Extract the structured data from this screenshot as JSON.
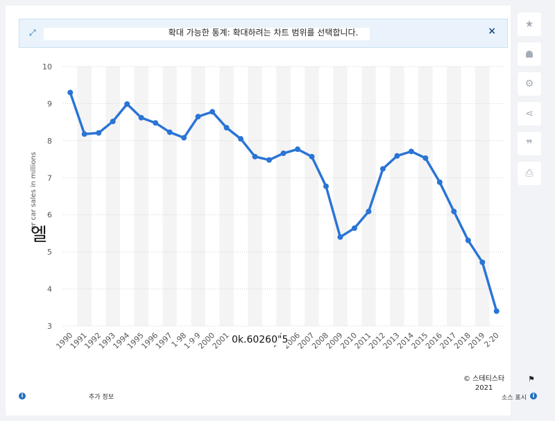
{
  "banner": {
    "message": "확대 가능한 통계: 확대하려는 차트 범위를 선택합니다.",
    "close_symbol": "×",
    "expand_icon": "expand-icon"
  },
  "sidebar": {
    "buttons": [
      {
        "icon": "star-icon",
        "glyph": "★"
      },
      {
        "icon": "bell-icon",
        "glyph": "🔔"
      },
      {
        "icon": "gear-icon",
        "glyph": "⚙"
      },
      {
        "icon": "share-icon",
        "glyph": "⋖"
      },
      {
        "icon": "quote-icon",
        "glyph": "❞"
      },
      {
        "icon": "print-icon",
        "glyph": "⎙"
      }
    ]
  },
  "overlays": {
    "glyph_left": "엘",
    "glyph_center": "0k.60260\"5"
  },
  "footer": {
    "more_info": "추가 정보",
    "source": "소스 표시",
    "copyright_line1": "© 스테티스타",
    "copyright_line2": "2021"
  },
  "colors": {
    "line": "#2a74d5",
    "band": "#f4f4f4",
    "grid": "#cfcfcf",
    "accent": "#1e6fbf"
  },
  "chart_data": {
    "type": "line",
    "ylabel": "er car sales in millions",
    "ylim": [
      3,
      10
    ],
    "yticks": [
      3,
      4,
      5,
      6,
      7,
      8,
      9,
      10
    ],
    "x": [
      "1990",
      "1991",
      "1992",
      "1993",
      "1994",
      "1995",
      "1996",
      "1997",
      "1998",
      "1999",
      "2000",
      "2001",
      "2002",
      "2003",
      "2004",
      "2005",
      "2006",
      "2007",
      "2008",
      "2009",
      "2010",
      "2011",
      "2012",
      "2013",
      "2014",
      "2015",
      "2016",
      "2017",
      "2018",
      "2019",
      "2020"
    ],
    "xtick_labels": [
      "1990",
      "1991",
      "1992",
      "1993",
      "1994",
      "1995",
      "1996",
      "1997",
      "1·98",
      "1·9·9",
      "2000",
      "2001",
      "2·",
      "",
      "",
      "20·5",
      "2006",
      "2007",
      "2008",
      "2009",
      "2010",
      "2011",
      "2012",
      "2013",
      "2014",
      "2015",
      "2016",
      "2017",
      "2018",
      "2019",
      "2·20"
    ],
    "series": [
      {
        "values": [
          9.3,
          8.18,
          8.21,
          8.52,
          8.99,
          8.62,
          8.48,
          8.23,
          8.08,
          8.65,
          8.78,
          8.35,
          8.05,
          7.57,
          7.48,
          7.66,
          7.77,
          7.57,
          6.77,
          5.4,
          5.64,
          6.09,
          7.24,
          7.59,
          7.71,
          7.53,
          6.88,
          6.09,
          5.31,
          4.72,
          3.4
        ]
      }
    ],
    "grid": true,
    "alternating_bands": true
  }
}
